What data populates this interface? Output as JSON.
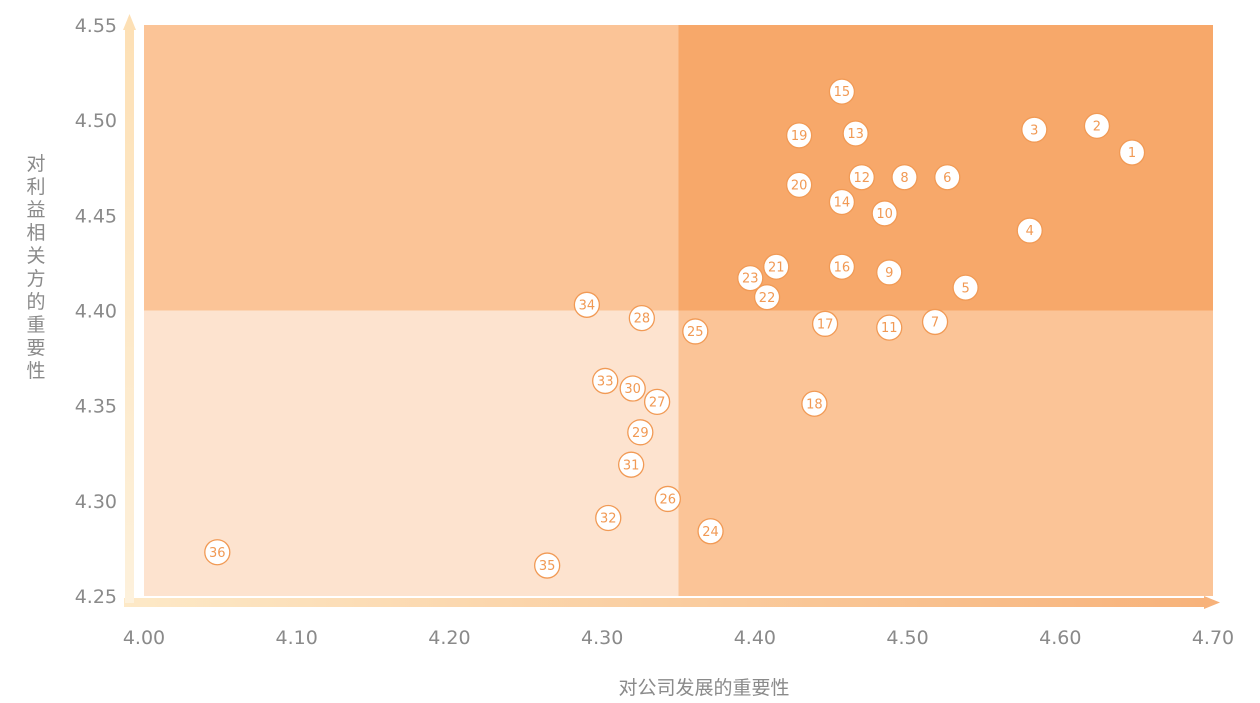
{
  "chart_data": {
    "type": "scatter",
    "title": "",
    "xlabel": "对公司发展的重要性",
    "ylabel": "对利益相关方的重要性",
    "xlim": [
      4.0,
      4.7
    ],
    "ylim": [
      4.25,
      4.55
    ],
    "x_ticks": [
      "4.00",
      "4.10",
      "4.20",
      "4.30",
      "4.40",
      "4.50",
      "4.60",
      "4.70"
    ],
    "y_ticks": [
      "4.55",
      "4.50",
      "4.45",
      "4.40",
      "4.35",
      "4.30",
      "4.25"
    ],
    "quadrant_split": {
      "x": 4.35,
      "y": 4.4
    },
    "colors": {
      "top_right": "#f7a86a",
      "top_left": "#fbc497",
      "bottom_right": "#fbc497",
      "bottom_left": "#fde3cf",
      "axis": "#fde3bd",
      "marker_edge": "#f19a55"
    },
    "points": [
      {
        "label": "1",
        "x": 4.647,
        "y": 4.483
      },
      {
        "label": "2",
        "x": 4.624,
        "y": 4.497
      },
      {
        "label": "3",
        "x": 4.583,
        "y": 4.495
      },
      {
        "label": "4",
        "x": 4.58,
        "y": 4.442
      },
      {
        "label": "5",
        "x": 4.538,
        "y": 4.412
      },
      {
        "label": "6",
        "x": 4.526,
        "y": 4.47
      },
      {
        "label": "7",
        "x": 4.518,
        "y": 4.394
      },
      {
        "label": "8",
        "x": 4.498,
        "y": 4.47
      },
      {
        "label": "9",
        "x": 4.488,
        "y": 4.42
      },
      {
        "label": "10",
        "x": 4.485,
        "y": 4.451
      },
      {
        "label": "11",
        "x": 4.488,
        "y": 4.391
      },
      {
        "label": "12",
        "x": 4.47,
        "y": 4.47
      },
      {
        "label": "13",
        "x": 4.466,
        "y": 4.493
      },
      {
        "label": "14",
        "x": 4.457,
        "y": 4.457
      },
      {
        "label": "15",
        "x": 4.457,
        "y": 4.515
      },
      {
        "label": "16",
        "x": 4.457,
        "y": 4.423
      },
      {
        "label": "17",
        "x": 4.446,
        "y": 4.393
      },
      {
        "label": "18",
        "x": 4.439,
        "y": 4.351
      },
      {
        "label": "19",
        "x": 4.429,
        "y": 4.492
      },
      {
        "label": "20",
        "x": 4.429,
        "y": 4.466
      },
      {
        "label": "21",
        "x": 4.414,
        "y": 4.423
      },
      {
        "label": "22",
        "x": 4.408,
        "y": 4.407
      },
      {
        "label": "23",
        "x": 4.397,
        "y": 4.417
      },
      {
        "label": "24",
        "x": 4.371,
        "y": 4.284
      },
      {
        "label": "25",
        "x": 4.361,
        "y": 4.389
      },
      {
        "label": "26",
        "x": 4.343,
        "y": 4.301
      },
      {
        "label": "27",
        "x": 4.336,
        "y": 4.352
      },
      {
        "label": "28",
        "x": 4.326,
        "y": 4.396
      },
      {
        "label": "29",
        "x": 4.325,
        "y": 4.336
      },
      {
        "label": "30",
        "x": 4.32,
        "y": 4.359
      },
      {
        "label": "31",
        "x": 4.319,
        "y": 4.319
      },
      {
        "label": "32",
        "x": 4.304,
        "y": 4.291
      },
      {
        "label": "33",
        "x": 4.302,
        "y": 4.363
      },
      {
        "label": "34",
        "x": 4.29,
        "y": 4.403
      },
      {
        "label": "35",
        "x": 4.264,
        "y": 4.266
      },
      {
        "label": "36",
        "x": 4.048,
        "y": 4.273
      }
    ]
  }
}
